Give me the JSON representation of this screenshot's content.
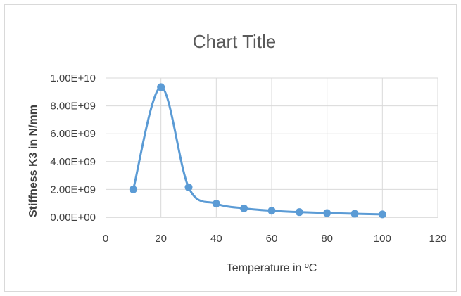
{
  "chart_data": {
    "type": "scatter",
    "title": "Chart Title",
    "xlabel": "Temperature in ºC",
    "ylabel": "Stiffness K3 in N/mm",
    "xlim": [
      0,
      120
    ],
    "ylim": [
      0,
      10000000000
    ],
    "x_ticks": [
      "0",
      "20",
      "40",
      "60",
      "80",
      "100",
      "120"
    ],
    "y_ticks": [
      "0.00E+00",
      "2.00E+09",
      "4.00E+09",
      "6.00E+09",
      "8.00E+09",
      "1.00E+10"
    ],
    "grid": true,
    "legend": "none",
    "line_style": "smooth",
    "series": [
      {
        "color": "#5b9bd5",
        "x": [
          10,
          20,
          30,
          40,
          50,
          60,
          70,
          80,
          90,
          100
        ],
        "values": [
          2000000000,
          9350000000,
          2150000000,
          980000000,
          640000000,
          470000000,
          370000000,
          300000000,
          250000000,
          210000000
        ]
      }
    ]
  }
}
